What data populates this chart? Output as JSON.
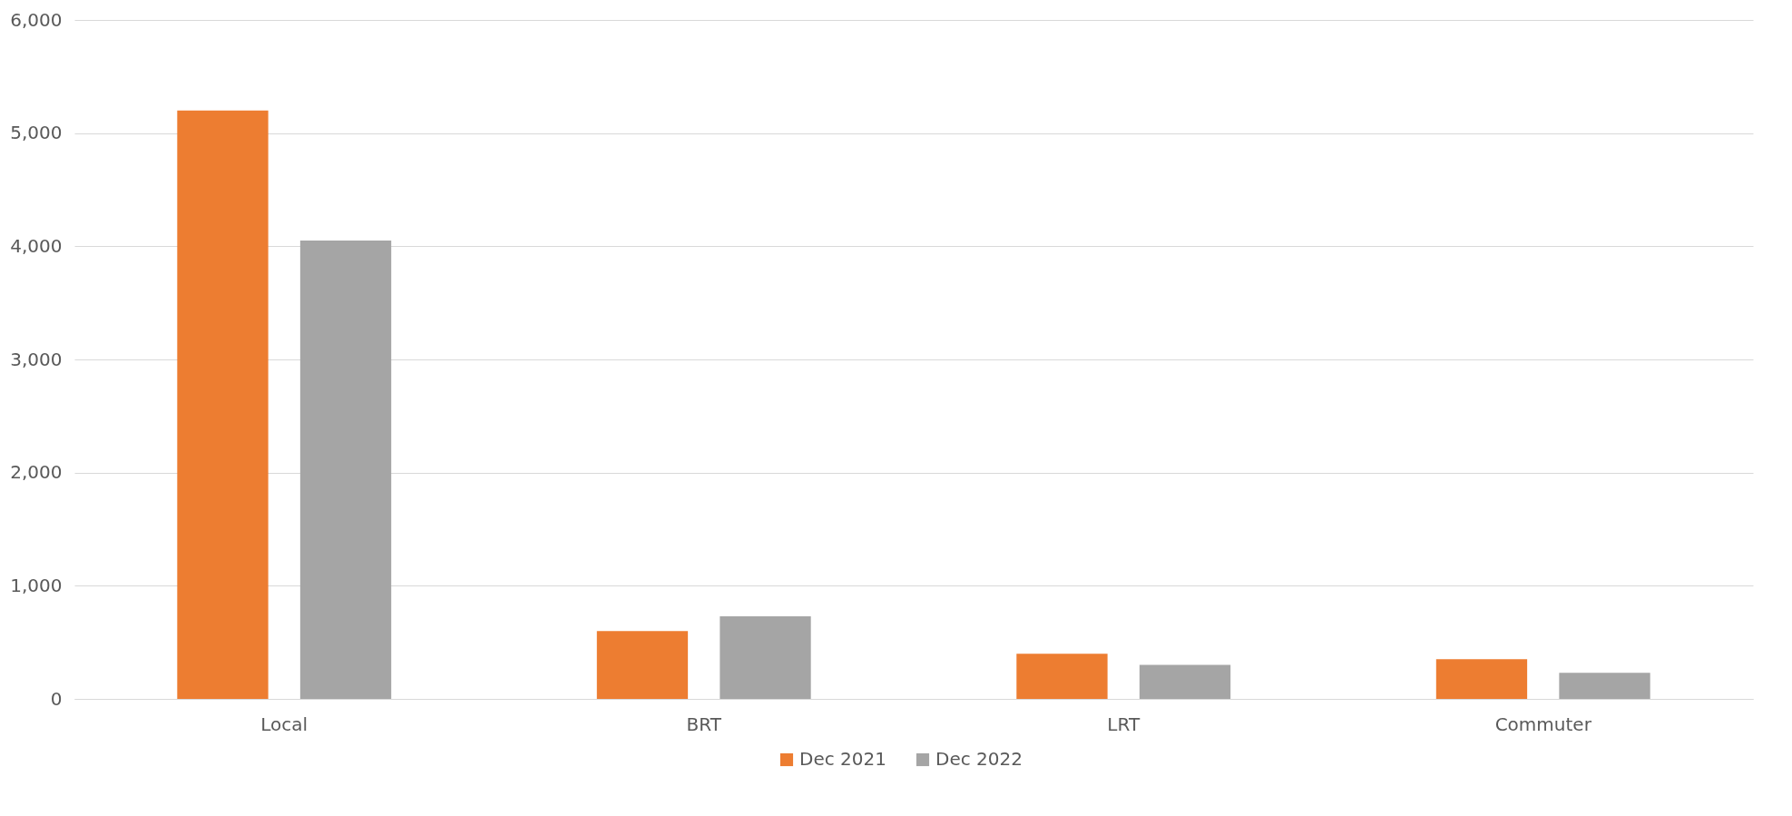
{
  "chart_data": {
    "type": "bar",
    "categories": [
      "Local",
      "BRT",
      "LRT",
      "Commuter"
    ],
    "series": [
      {
        "name": "Dec 2021",
        "color": "#ed7d31",
        "values": [
          5200,
          600,
          400,
          350
        ]
      },
      {
        "name": "Dec 2022",
        "color": "#a5a5a5",
        "values": [
          4050,
          730,
          300,
          230
        ]
      }
    ],
    "ylim": [
      0,
      6000
    ],
    "yticks": [
      0,
      {
        "value": 1000,
        "label": "1,000"
      },
      {
        "value": 2000,
        "label": "2,000"
      },
      {
        "value": 3000,
        "label": "3,000"
      },
      {
        "value": 4000,
        "label": "4,000"
      },
      {
        "value": 5000,
        "label": "5,000"
      },
      {
        "value": 6000,
        "label": "6,000"
      }
    ],
    "grid": "y",
    "legend": "bottom"
  }
}
